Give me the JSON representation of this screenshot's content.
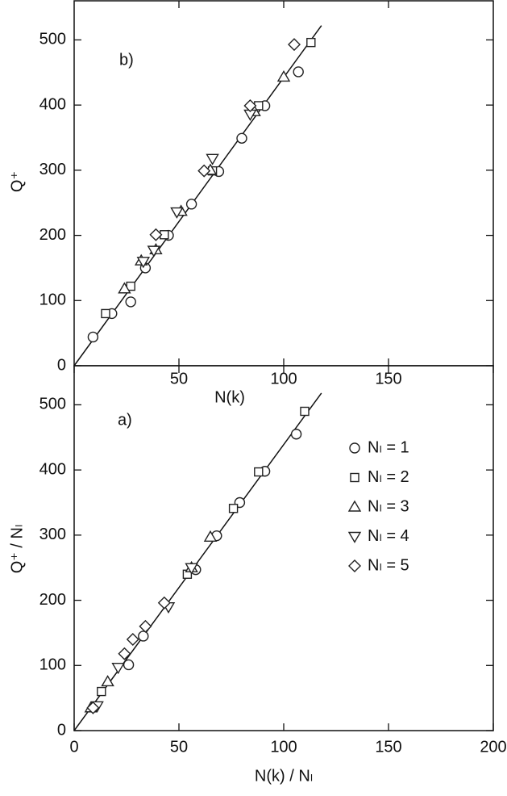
{
  "chart_data": [
    {
      "type": "scatter",
      "panel_label": "b)",
      "xlabel": "N(k)",
      "ylabel": "Q⁺",
      "xlim": [
        0,
        200
      ],
      "ylim": [
        0,
        560
      ],
      "xticks": [
        50,
        100,
        150
      ],
      "yticks": [
        0,
        100,
        200,
        300,
        400,
        500
      ],
      "fit": {
        "x": [
          0,
          118
        ],
        "y": [
          0,
          522
        ]
      },
      "series": [
        {
          "marker": "circle",
          "color": "#222222",
          "x": [
            9,
            18,
            27,
            34,
            45,
            56,
            69,
            80,
            91,
            107
          ],
          "y": [
            44,
            80,
            98,
            150,
            200,
            248,
            298,
            349,
            399,
            451
          ]
        },
        {
          "marker": "square",
          "color": "#222222",
          "x": [
            15,
            27,
            43,
            66,
            88,
            113
          ],
          "y": [
            80,
            122,
            201,
            299,
            399,
            496
          ]
        },
        {
          "marker": "triangle-up",
          "color": "#222222",
          "x": [
            24,
            32,
            39,
            51,
            65,
            86,
            100
          ],
          "y": [
            118,
            161,
            178,
            237,
            300,
            390,
            443
          ]
        },
        {
          "marker": "triangle-down",
          "color": "#222222",
          "x": [
            33,
            38,
            49,
            66,
            84
          ],
          "y": [
            160,
            177,
            236,
            318,
            386
          ]
        },
        {
          "marker": "diamond",
          "color": "#222222",
          "x": [
            39,
            62,
            84,
            105
          ],
          "y": [
            201,
            299,
            399,
            493
          ]
        }
      ]
    },
    {
      "type": "scatter",
      "panel_label": "a)",
      "xlabel": "N(k) / Nₗ",
      "ylabel": "Q⁺ / Nₗ",
      "xlim": [
        0,
        200
      ],
      "ylim": [
        0,
        560
      ],
      "xticks": [
        0,
        50,
        100,
        150,
        200
      ],
      "yticks": [
        0,
        100,
        200,
        300,
        400,
        500
      ],
      "fit": {
        "x": [
          0,
          118
        ],
        "y": [
          0,
          518
        ]
      },
      "series": [
        {
          "name": "Nₗ = 1",
          "marker": "circle",
          "color": "#222222",
          "x": [
            26,
            33,
            58,
            68,
            79,
            91,
            106
          ],
          "y": [
            101,
            145,
            247,
            299,
            350,
            398,
            455
          ]
        },
        {
          "name": "Nₗ = 2",
          "marker": "square",
          "color": "#222222",
          "x": [
            13,
            54,
            76,
            88,
            110
          ],
          "y": [
            60,
            240,
            341,
            397,
            490
          ]
        },
        {
          "name": "Nₗ = 3",
          "marker": "triangle-up",
          "color": "#222222",
          "x": [
            8,
            16,
            56,
            65
          ],
          "y": [
            35,
            75,
            250,
            297
          ]
        },
        {
          "name": "Nₗ = 4",
          "marker": "triangle-down",
          "color": "#222222",
          "x": [
            11,
            21,
            45,
            56
          ],
          "y": [
            38,
            97,
            190,
            250
          ]
        },
        {
          "name": "Nₗ = 5",
          "marker": "diamond",
          "color": "#222222",
          "x": [
            9,
            24,
            28,
            34,
            43
          ],
          "y": [
            35,
            118,
            140,
            160,
            196
          ]
        }
      ]
    }
  ]
}
